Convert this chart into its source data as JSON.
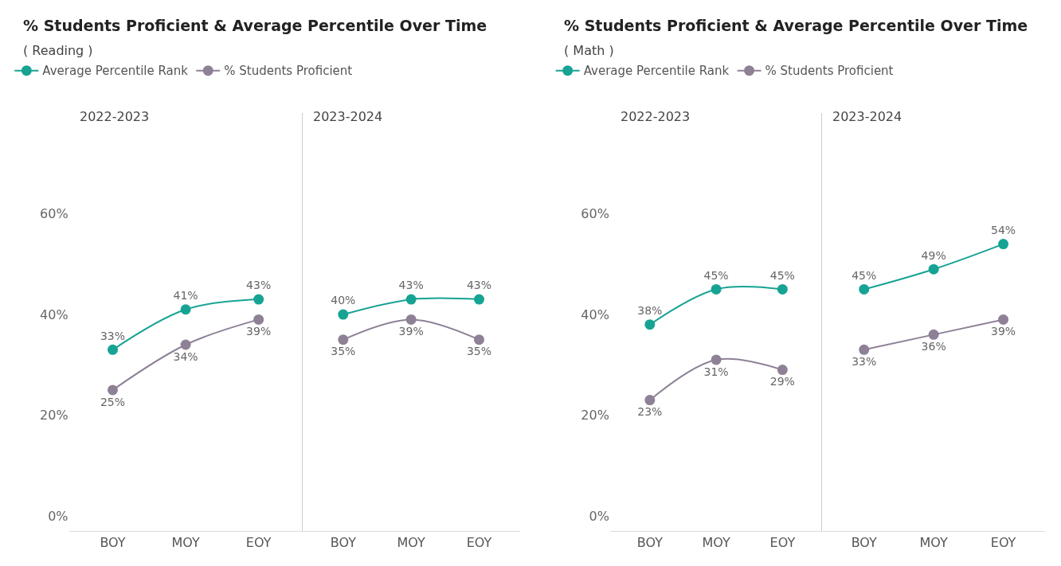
{
  "chart_data": [
    {
      "type": "line",
      "title": "% Students Proficient & Average Percentile Over Time",
      "subtitle": "( Reading )",
      "annotations": [
        "2022-2023"
      ],
      "categories": [
        "BOY",
        "MOY",
        "EOY"
      ],
      "ylim": [
        -3,
        80
      ],
      "yticks": [
        {
          "value": 0,
          "label": "0%"
        },
        {
          "value": 20,
          "label": "20%"
        },
        {
          "value": 40,
          "label": "40%"
        },
        {
          "value": 60,
          "label": "60%"
        }
      ],
      "grid": false,
      "legend": "top left",
      "marker": "circle",
      "series": [
        {
          "name": "Average Percentile Rank",
          "color": "#16a394",
          "values": [
            33,
            41,
            43
          ],
          "value_labels": [
            "33%",
            "41%",
            "43%"
          ]
        },
        {
          "name": "% Students Proficient",
          "color": "#8e8196",
          "values": [
            25,
            34,
            39
          ],
          "value_labels": [
            "25%",
            "34%",
            "39%"
          ]
        }
      ]
    },
    {
      "type": "line",
      "annotations": [
        "2023-2024"
      ],
      "categories": [
        "BOY",
        "MOY",
        "EOY"
      ],
      "ylim": [
        -3,
        80
      ],
      "tick_labels": "x",
      "grid": false,
      "marker": "circle",
      "series": [
        {
          "color": "#16a394",
          "values": [
            40,
            43,
            43
          ],
          "value_labels": [
            "40%",
            "43%",
            "43%"
          ]
        },
        {
          "color": "#8e8196",
          "values": [
            35,
            39,
            35
          ],
          "value_labels": [
            "35%",
            "39%",
            "35%"
          ]
        }
      ]
    },
    {
      "type": "line",
      "title": "% Students Proficient & Average Percentile Over Time",
      "subtitle": "( Math )",
      "annotations": [
        "2022-2023"
      ],
      "categories": [
        "BOY",
        "MOY",
        "EOY"
      ],
      "ylim": [
        -3,
        80
      ],
      "yticks": [
        {
          "value": 0,
          "label": "0%"
        },
        {
          "value": 20,
          "label": "20%"
        },
        {
          "value": 40,
          "label": "40%"
        },
        {
          "value": 60,
          "label": "60%"
        }
      ],
      "grid": false,
      "legend": "top left",
      "marker": "circle",
      "series": [
        {
          "name": "Average Percentile Rank",
          "color": "#16a394",
          "values": [
            38,
            45,
            45
          ],
          "value_labels": [
            "38%",
            "45%",
            "45%"
          ]
        },
        {
          "name": "% Students Proficient",
          "color": "#8e8196",
          "values": [
            23,
            31,
            29
          ],
          "value_labels": [
            "23%",
            "31%",
            "29%"
          ]
        }
      ]
    },
    {
      "type": "line",
      "annotations": [
        "2023-2024"
      ],
      "categories": [
        "BOY",
        "MOY",
        "EOY"
      ],
      "ylim": [
        -3,
        80
      ],
      "tick_labels": "x",
      "grid": false,
      "marker": "circle",
      "series": [
        {
          "color": "#16a394",
          "values": [
            45,
            49,
            54
          ],
          "value_labels": [
            "45%",
            "49%",
            "54%"
          ]
        },
        {
          "color": "#8e8196",
          "values": [
            33,
            36,
            39
          ],
          "value_labels": [
            "33%",
            "36%",
            "39%"
          ]
        }
      ]
    }
  ]
}
